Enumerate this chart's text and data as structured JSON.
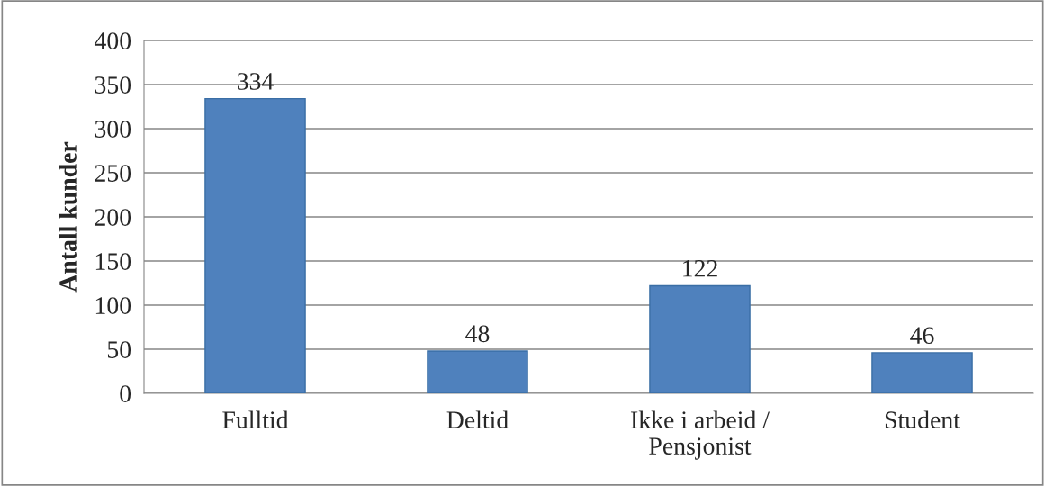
{
  "chart_data": {
    "type": "bar",
    "ylabel": "Antall kunder",
    "categories": [
      "Fulltid",
      "Deltid",
      "Ikke i arbeid /\nPensjonist",
      "Student"
    ],
    "values": [
      334,
      48,
      122,
      46
    ],
    "color": "#4f81bd",
    "ylim": [
      0,
      400
    ],
    "yticks": [
      0,
      50,
      100,
      150,
      200,
      250,
      300,
      350,
      400
    ],
    "grid": "y",
    "data_labels": true
  }
}
